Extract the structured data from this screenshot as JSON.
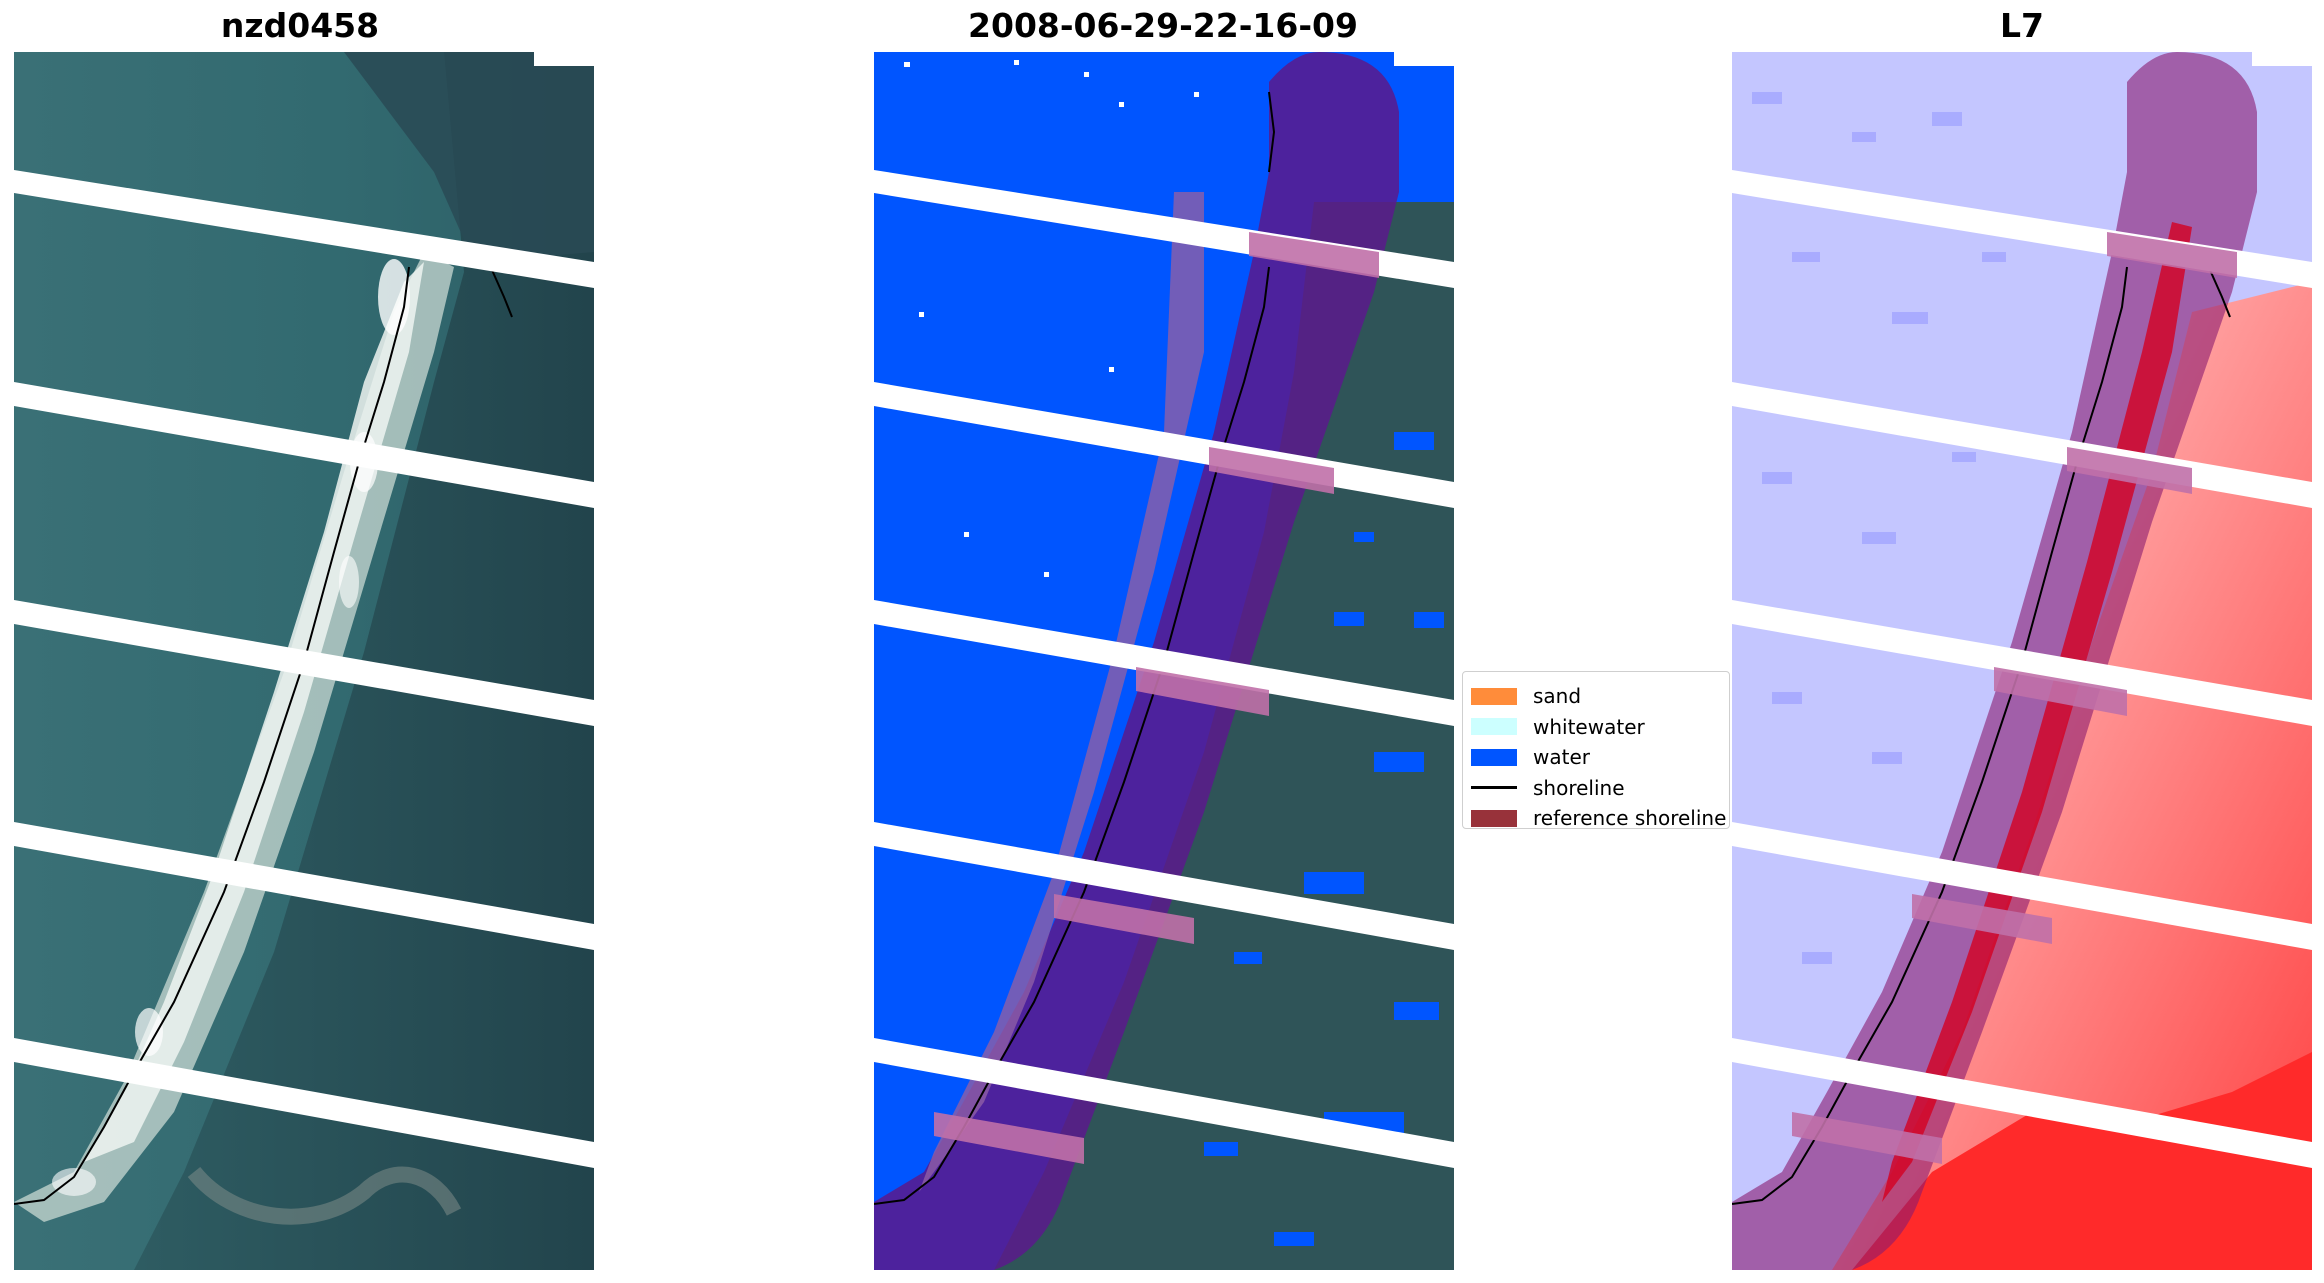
{
  "panels": [
    {
      "title": "nzd0458"
    },
    {
      "title": "2008-06-29-22-16-09"
    },
    {
      "title": "L7"
    }
  ],
  "legend": {
    "items": [
      {
        "label": "sand",
        "color": "#ff8c3a",
        "kind": "patch"
      },
      {
        "label": "whitewater",
        "color": "#ccffff",
        "kind": "patch"
      },
      {
        "label": "water",
        "color": "#0055ff",
        "kind": "patch"
      },
      {
        "label": "shoreline",
        "color": "#000000",
        "kind": "line"
      },
      {
        "label": "reference shoreline",
        "color": "#98323a",
        "kind": "patch"
      }
    ]
  },
  "colors": {
    "rgb_base": "#2e5f64",
    "sea_dark": "#27484f",
    "beach": "#d5e2dc",
    "water_class": "#0055ff",
    "land_class": "#2f5458",
    "reference_buffer": "#7a1f78",
    "index_positive": "#ff2020",
    "index_negative": "#6a6aff",
    "gap_stripe": "#ffffff"
  }
}
